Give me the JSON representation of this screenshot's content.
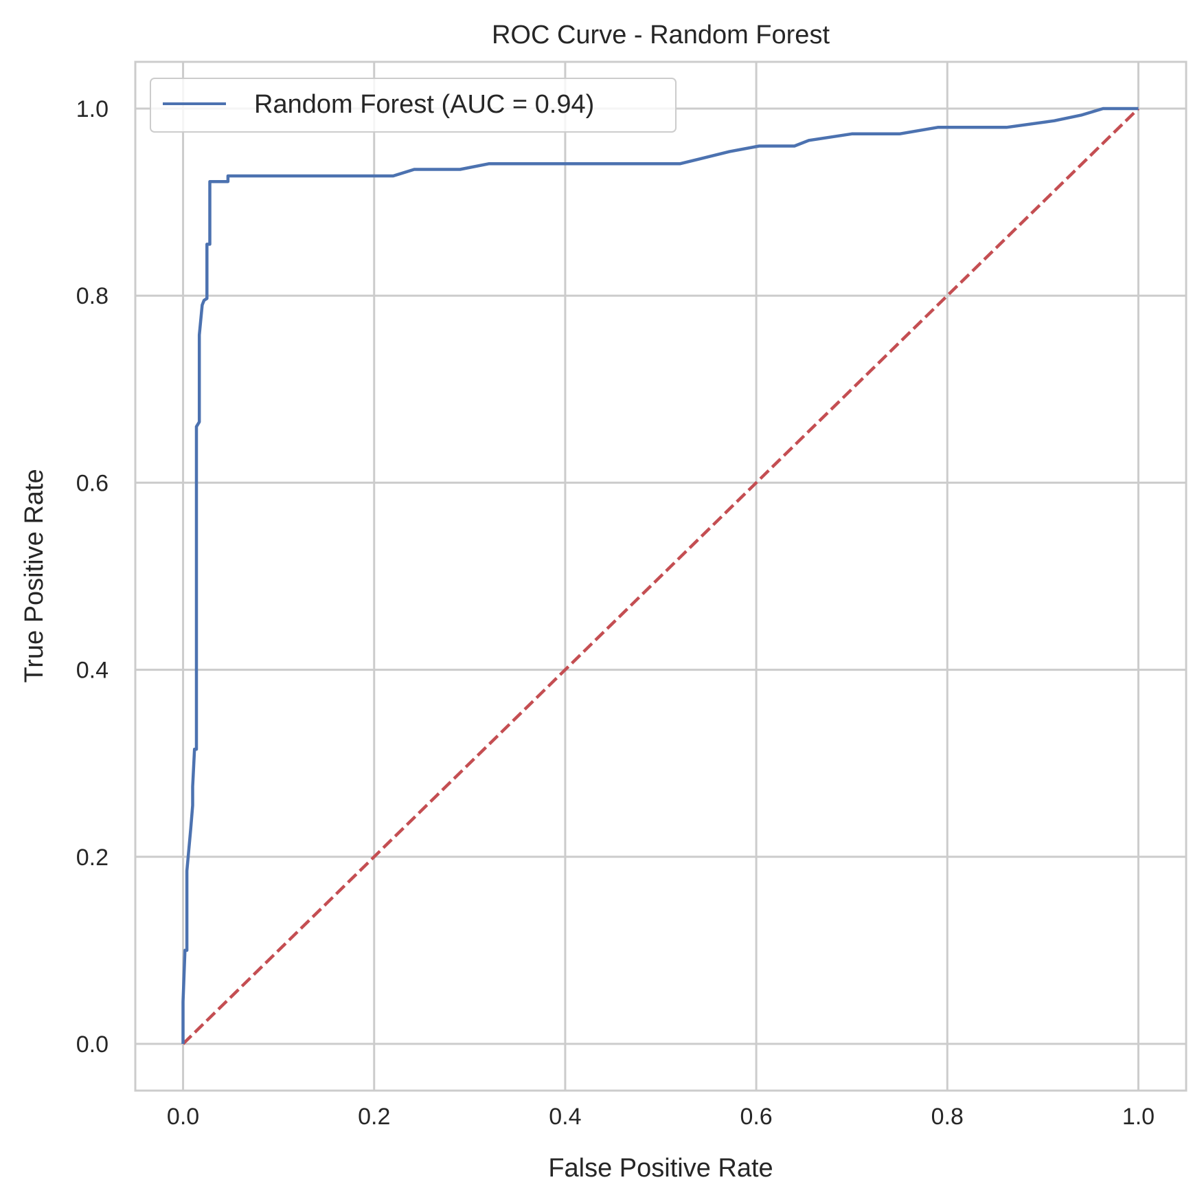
{
  "chart_data": {
    "type": "line",
    "title": "ROC Curve - Random Forest",
    "xlabel": "False Positive Rate",
    "ylabel": "True Positive Rate",
    "xlim": [
      -0.05,
      1.05
    ],
    "ylim": [
      -0.05,
      1.05
    ],
    "xticks": [
      0.0,
      0.2,
      0.4,
      0.6,
      0.8,
      1.0
    ],
    "yticks": [
      0.0,
      0.2,
      0.4,
      0.6,
      0.8,
      1.0
    ],
    "xtick_labels": [
      "0.0",
      "0.2",
      "0.4",
      "0.6",
      "0.8",
      "1.0"
    ],
    "ytick_labels": [
      "0.0",
      "0.2",
      "0.4",
      "0.6",
      "0.8",
      "1.0"
    ],
    "grid": true,
    "legend_position": "top-left",
    "series": [
      {
        "name": "Random Forest (AUC = 0.94)",
        "color": "#4c72b0",
        "style": "solid",
        "x": [
          0.0,
          0.0,
          0.0,
          0.002,
          0.004,
          0.004,
          0.008,
          0.01,
          0.01,
          0.012,
          0.014,
          0.014,
          0.017,
          0.017,
          0.02,
          0.022,
          0.025,
          0.025,
          0.028,
          0.028,
          0.031,
          0.031,
          0.047,
          0.047,
          0.1,
          0.15,
          0.22,
          0.242,
          0.29,
          0.32,
          0.4,
          0.52,
          0.572,
          0.603,
          0.64,
          0.655,
          0.7,
          0.75,
          0.79,
          0.862,
          0.912,
          0.94,
          0.963,
          1.0
        ],
        "y": [
          0.0,
          0.03,
          0.045,
          0.1,
          0.1,
          0.185,
          0.23,
          0.255,
          0.275,
          0.315,
          0.315,
          0.66,
          0.665,
          0.758,
          0.79,
          0.795,
          0.797,
          0.855,
          0.855,
          0.922,
          0.922,
          0.922,
          0.922,
          0.928,
          0.928,
          0.928,
          0.928,
          0.935,
          0.935,
          0.941,
          0.941,
          0.941,
          0.954,
          0.96,
          0.96,
          0.966,
          0.973,
          0.973,
          0.98,
          0.98,
          0.987,
          0.993,
          1.0,
          1.0
        ]
      },
      {
        "name": "",
        "color": "#c44e52",
        "style": "dashed",
        "x": [
          0.0,
          1.0
        ],
        "y": [
          0.0,
          1.0
        ]
      }
    ]
  }
}
